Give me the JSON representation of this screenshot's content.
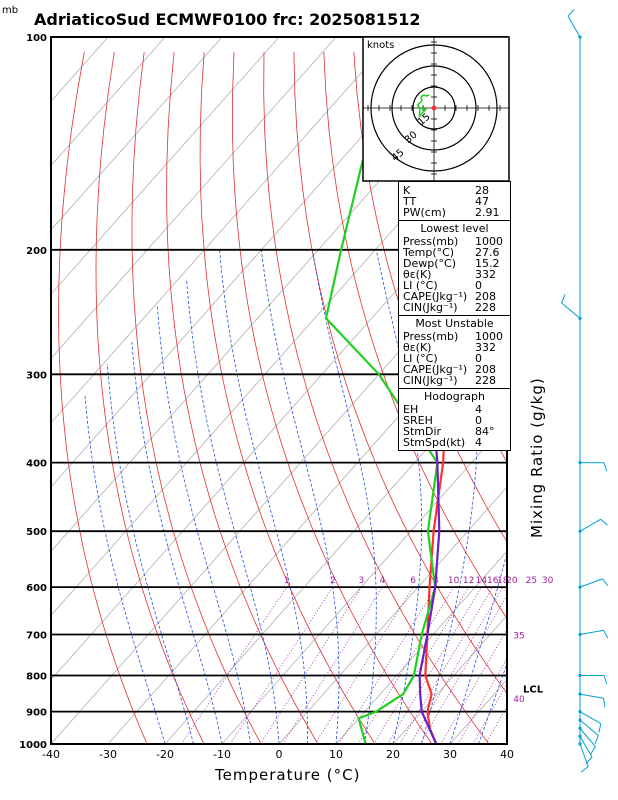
{
  "title": "AdriaticoSud ECMWF0100 frc: 2025081512",
  "pressure_unit": "mb",
  "hodograph": {
    "unit_label": "knots",
    "ring_labels": [
      "15",
      "30",
      "45"
    ]
  },
  "indices": {
    "general": [
      {
        "label": "K",
        "value": "28"
      },
      {
        "label": "TT",
        "value": "47"
      },
      {
        "label": "PW(cm)",
        "value": "2.91"
      }
    ],
    "lowest_level": {
      "title": "Lowest level",
      "rows": [
        {
          "label": "Press(mb)",
          "value": "1000"
        },
        {
          "label": "Temp(°C)",
          "value": "27.6"
        },
        {
          "label": "Dewp(°C)",
          "value": "15.2"
        },
        {
          "label": "θε(K)",
          "value": "332"
        },
        {
          "label": "LI (°C)",
          "value": "0"
        },
        {
          "label": "CAPE(Jkg⁻¹)",
          "value": "208"
        },
        {
          "label": "CIN(Jkg⁻¹)",
          "value": "228"
        }
      ]
    },
    "most_unstable": {
      "title": "Most Unstable",
      "rows": [
        {
          "label": "Press(mb)",
          "value": "1000"
        },
        {
          "label": "θε(K)",
          "value": "332"
        },
        {
          "label": "LI (°C)",
          "value": "0"
        },
        {
          "label": "CAPE(Jkg⁻¹)",
          "value": "208"
        },
        {
          "label": "CIN(Jkg⁻¹)",
          "value": "228"
        }
      ]
    },
    "hodograph": {
      "title": "Hodograph",
      "rows": [
        {
          "label": "EH",
          "value": "4"
        },
        {
          "label": "SREH",
          "value": "0"
        },
        {
          "label": "StmDir",
          "value": "84°"
        },
        {
          "label": "StmSpd(kt)",
          "value": "4"
        }
      ]
    }
  },
  "mixing_ratio_axis_label": "Mixing Ratio (g/kg)",
  "chart_data": {
    "type": "line",
    "title": "AdriaticoSud ECMWF0100 frc: 2025081512",
    "xlabel": "Temperature (°C)",
    "ylabel": "",
    "xlim": [
      -40,
      40
    ],
    "ylim": [
      1000,
      100
    ],
    "y_scale": "log",
    "x_ticks": [
      -40,
      -30,
      -20,
      -10,
      0,
      10,
      20,
      30,
      40
    ],
    "pressure_ticks": [
      100,
      200,
      300,
      400,
      500,
      600,
      700,
      800,
      900,
      1000
    ],
    "mixing_ratio_labels": [
      "1",
      "2",
      "3",
      "4",
      "6",
      "8",
      "10",
      "12",
      "14",
      "16",
      "18",
      "20",
      "25",
      "30",
      "35",
      "40"
    ],
    "lcl_label": "LCL",
    "series": [
      {
        "points": [
          [
            1000,
            27.6
          ],
          [
            950,
            24
          ],
          [
            900,
            21
          ],
          [
            850,
            19
          ],
          [
            800,
            15
          ],
          [
            700,
            9
          ],
          [
            600,
            2
          ],
          [
            500,
            -6
          ],
          [
            400,
            -15
          ],
          [
            300,
            -28
          ],
          [
            250,
            -36
          ],
          [
            200,
            -45
          ],
          [
            150,
            -55
          ],
          [
            100,
            -65
          ]
        ]
      },
      {
        "points": [
          [
            1000,
            15.2
          ],
          [
            950,
            12
          ],
          [
            920,
            10
          ],
          [
            900,
            12
          ],
          [
            850,
            14
          ],
          [
            800,
            13
          ],
          [
            700,
            8
          ],
          [
            600,
            3
          ],
          [
            500,
            -7
          ],
          [
            400,
            -16
          ],
          [
            300,
            -40
          ],
          [
            250,
            -58
          ],
          [
            200,
            -66
          ],
          [
            150,
            -76
          ],
          [
            100,
            -84
          ]
        ]
      },
      {
        "points": [
          [
            1000,
            27.6
          ],
          [
            900,
            20
          ],
          [
            850,
            17
          ],
          [
            800,
            14
          ],
          [
            700,
            9
          ],
          [
            600,
            3
          ],
          [
            500,
            -5
          ],
          [
            400,
            -16
          ],
          [
            300,
            -31
          ],
          [
            250,
            -41
          ],
          [
            200,
            -52
          ],
          [
            150,
            -66
          ],
          [
            120,
            -76
          ]
        ]
      }
    ],
    "wind_barbs": [
      {
        "p": 1000,
        "dir": 160,
        "spd": 10
      },
      {
        "p": 975,
        "dir": 150,
        "spd": 10
      },
      {
        "p": 950,
        "dir": 140,
        "spd": 12
      },
      {
        "p": 925,
        "dir": 130,
        "spd": 12
      },
      {
        "p": 900,
        "dir": 120,
        "spd": 10
      },
      {
        "p": 850,
        "dir": 100,
        "spd": 12
      },
      {
        "p": 800,
        "dir": 90,
        "spd": 10
      },
      {
        "p": 700,
        "dir": 80,
        "spd": 6
      },
      {
        "p": 600,
        "dir": 70,
        "spd": 8
      },
      {
        "p": 500,
        "dir": 60,
        "spd": 12
      },
      {
        "p": 400,
        "dir": 90,
        "spd": 10
      },
      {
        "p": 250,
        "dir": 310,
        "spd": 12
      },
      {
        "p": 100,
        "dir": 330,
        "spd": 10
      }
    ]
  }
}
